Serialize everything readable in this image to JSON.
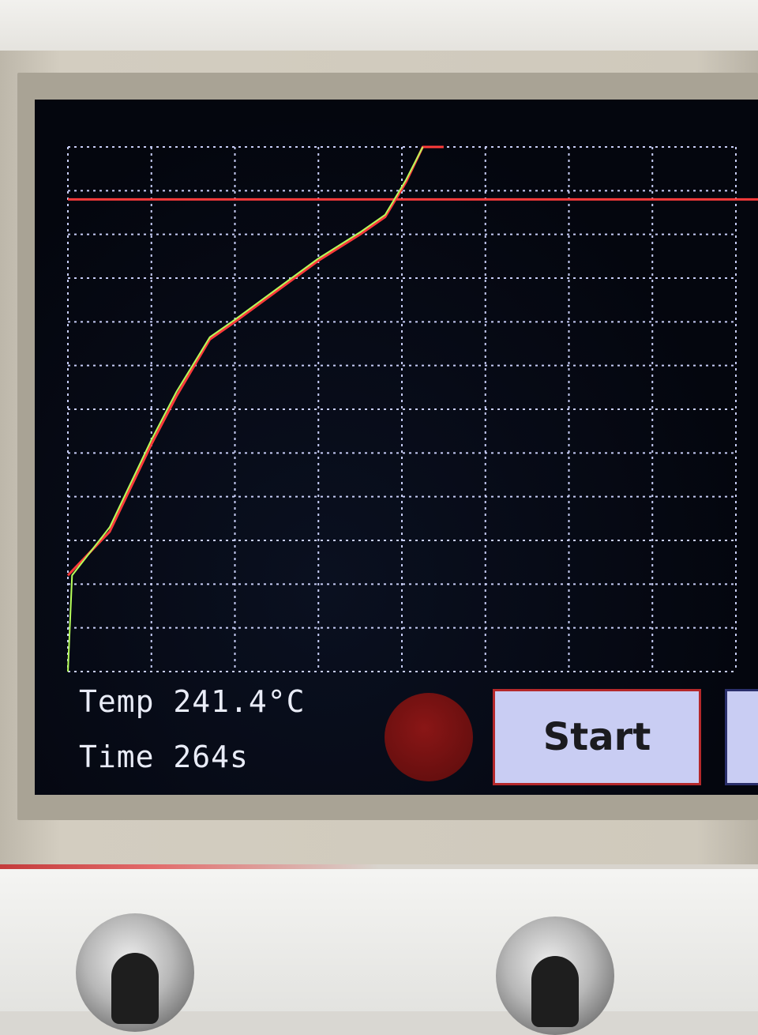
{
  "status": {
    "temp_label": "Temp",
    "temp_value": "241.4°C",
    "time_label": "Time",
    "time_value": "264s"
  },
  "controls": {
    "start_label": "Start"
  },
  "colors": {
    "profile": "#ff3b3b",
    "measured": "#b6ff5a",
    "grid": "#c7cdf7",
    "button_fill": "#c9cdf3",
    "indicator": "#7a1212"
  },
  "chart_data": {
    "type": "line",
    "grid": true,
    "x_divisions": 8,
    "y_divisions": 12,
    "xlim": [
      0,
      8
    ],
    "ylim": [
      0,
      12
    ],
    "target_line": 10.8,
    "series": [
      {
        "role": "profile",
        "x": [
          0.0,
          0.5,
          1.0,
          1.3,
          1.7,
          2.0,
          2.5,
          3.0,
          3.5,
          3.8,
          4.05,
          4.25,
          4.5
        ],
        "y": [
          2.2,
          3.2,
          5.2,
          6.3,
          7.6,
          8.0,
          8.7,
          9.4,
          10.0,
          10.4,
          11.2,
          12.0,
          12.0
        ]
      },
      {
        "role": "measured",
        "x": [
          0.0,
          0.05,
          0.5,
          1.0,
          1.3,
          1.7,
          2.0,
          2.5,
          3.0,
          3.5,
          3.8,
          4.05,
          4.25
        ],
        "y": [
          0.0,
          2.2,
          3.3,
          5.3,
          6.4,
          7.65,
          8.05,
          8.75,
          9.45,
          10.05,
          10.45,
          11.25,
          12.0
        ]
      }
    ]
  }
}
